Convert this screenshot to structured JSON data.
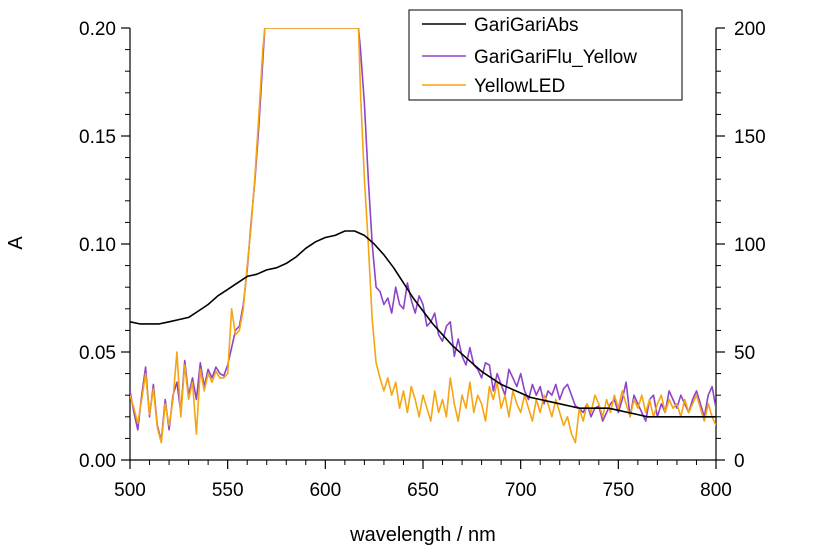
{
  "chart_data": {
    "type": "line",
    "xlabel": "wavelength / nm",
    "ylabel": "A",
    "xlim": [
      500,
      800
    ],
    "ylim_left": [
      0,
      0.2
    ],
    "ylim_right": [
      0,
      200
    ],
    "x_ticks": [
      "500",
      "550",
      "600",
      "650",
      "700",
      "750",
      "800"
    ],
    "y_ticks_left": [
      "0.00",
      "0.05",
      "0.10",
      "0.15",
      "0.20"
    ],
    "y_ticks_right": [
      "0",
      "50",
      "100",
      "150",
      "200"
    ],
    "legend_position": "top-right",
    "series": [
      {
        "name": "GariGariAbs",
        "axis": "left",
        "color": "#000000",
        "points": [
          [
            500,
            0.064
          ],
          [
            505,
            0.063
          ],
          [
            510,
            0.063
          ],
          [
            515,
            0.063
          ],
          [
            520,
            0.064
          ],
          [
            525,
            0.065
          ],
          [
            530,
            0.066
          ],
          [
            535,
            0.069
          ],
          [
            540,
            0.072
          ],
          [
            545,
            0.076
          ],
          [
            550,
            0.079
          ],
          [
            555,
            0.082
          ],
          [
            560,
            0.085
          ],
          [
            565,
            0.086
          ],
          [
            570,
            0.088
          ],
          [
            575,
            0.089
          ],
          [
            580,
            0.091
          ],
          [
            585,
            0.094
          ],
          [
            590,
            0.098
          ],
          [
            595,
            0.101
          ],
          [
            600,
            0.103
          ],
          [
            605,
            0.104
          ],
          [
            610,
            0.106
          ],
          [
            615,
            0.106
          ],
          [
            620,
            0.104
          ],
          [
            625,
            0.1
          ],
          [
            630,
            0.095
          ],
          [
            635,
            0.089
          ],
          [
            640,
            0.082
          ],
          [
            645,
            0.075
          ],
          [
            650,
            0.069
          ],
          [
            655,
            0.063
          ],
          [
            660,
            0.058
          ],
          [
            665,
            0.053
          ],
          [
            670,
            0.049
          ],
          [
            675,
            0.045
          ],
          [
            680,
            0.041
          ],
          [
            685,
            0.038
          ],
          [
            690,
            0.035
          ],
          [
            695,
            0.033
          ],
          [
            700,
            0.031
          ],
          [
            705,
            0.029
          ],
          [
            710,
            0.028
          ],
          [
            715,
            0.027
          ],
          [
            720,
            0.026
          ],
          [
            725,
            0.025
          ],
          [
            730,
            0.024
          ],
          [
            735,
            0.024
          ],
          [
            740,
            0.024
          ],
          [
            745,
            0.024
          ],
          [
            750,
            0.023
          ],
          [
            755,
            0.022
          ],
          [
            760,
            0.021
          ],
          [
            765,
            0.02
          ],
          [
            770,
            0.02
          ],
          [
            775,
            0.02
          ],
          [
            780,
            0.02
          ],
          [
            785,
            0.02
          ],
          [
            790,
            0.02
          ],
          [
            795,
            0.02
          ],
          [
            800,
            0.02
          ]
        ]
      },
      {
        "name": "GariGariFlu_Yellow",
        "axis": "right",
        "color": "#8e44c9",
        "points": [
          [
            500,
            32
          ],
          [
            502,
            22
          ],
          [
            504,
            14
          ],
          [
            506,
            30
          ],
          [
            508,
            43
          ],
          [
            510,
            20
          ],
          [
            512,
            35
          ],
          [
            514,
            16
          ],
          [
            516,
            9
          ],
          [
            518,
            28
          ],
          [
            520,
            14
          ],
          [
            522,
            30
          ],
          [
            524,
            36
          ],
          [
            526,
            22
          ],
          [
            528,
            46
          ],
          [
            530,
            30
          ],
          [
            532,
            38
          ],
          [
            534,
            28
          ],
          [
            536,
            45
          ],
          [
            538,
            34
          ],
          [
            540,
            42
          ],
          [
            542,
            38
          ],
          [
            544,
            43
          ],
          [
            546,
            40
          ],
          [
            548,
            39
          ],
          [
            550,
            44
          ],
          [
            552,
            52
          ],
          [
            554,
            60
          ],
          [
            556,
            62
          ],
          [
            558,
            72
          ],
          [
            560,
            88
          ],
          [
            562,
            110
          ],
          [
            564,
            130
          ],
          [
            566,
            155
          ],
          [
            568,
            185
          ],
          [
            569,
            200
          ],
          [
            617,
            200
          ],
          [
            618,
            190
          ],
          [
            620,
            165
          ],
          [
            622,
            130
          ],
          [
            624,
            100
          ],
          [
            626,
            80
          ],
          [
            628,
            78
          ],
          [
            630,
            72
          ],
          [
            632,
            75
          ],
          [
            634,
            68
          ],
          [
            636,
            80
          ],
          [
            638,
            72
          ],
          [
            640,
            70
          ],
          [
            642,
            82
          ],
          [
            644,
            74
          ],
          [
            646,
            68
          ],
          [
            648,
            76
          ],
          [
            650,
            72
          ],
          [
            652,
            62
          ],
          [
            654,
            64
          ],
          [
            656,
            68
          ],
          [
            658,
            58
          ],
          [
            660,
            55
          ],
          [
            662,
            62
          ],
          [
            664,
            64
          ],
          [
            666,
            48
          ],
          [
            668,
            56
          ],
          [
            670,
            48
          ],
          [
            672,
            44
          ],
          [
            674,
            52
          ],
          [
            676,
            44
          ],
          [
            678,
            42
          ],
          [
            680,
            38
          ],
          [
            682,
            45
          ],
          [
            684,
            44
          ],
          [
            686,
            32
          ],
          [
            688,
            40
          ],
          [
            690,
            35
          ],
          [
            692,
            30
          ],
          [
            694,
            42
          ],
          [
            696,
            38
          ],
          [
            698,
            34
          ],
          [
            700,
            40
          ],
          [
            702,
            32
          ],
          [
            704,
            28
          ],
          [
            706,
            35
          ],
          [
            708,
            30
          ],
          [
            710,
            34
          ],
          [
            712,
            26
          ],
          [
            714,
            32
          ],
          [
            716,
            30
          ],
          [
            718,
            35
          ],
          [
            720,
            28
          ],
          [
            722,
            33
          ],
          [
            724,
            35
          ],
          [
            726,
            30
          ],
          [
            728,
            25
          ],
          [
            730,
            24
          ],
          [
            732,
            22
          ],
          [
            734,
            26
          ],
          [
            736,
            20
          ],
          [
            738,
            24
          ],
          [
            740,
            25
          ],
          [
            742,
            18
          ],
          [
            744,
            22
          ],
          [
            746,
            26
          ],
          [
            748,
            28
          ],
          [
            750,
            22
          ],
          [
            752,
            28
          ],
          [
            754,
            36
          ],
          [
            756,
            20
          ],
          [
            758,
            30
          ],
          [
            760,
            26
          ],
          [
            762,
            22
          ],
          [
            764,
            18
          ],
          [
            766,
            28
          ],
          [
            768,
            30
          ],
          [
            770,
            20
          ],
          [
            772,
            26
          ],
          [
            774,
            22
          ],
          [
            776,
            32
          ],
          [
            778,
            28
          ],
          [
            780,
            24
          ],
          [
            782,
            30
          ],
          [
            784,
            26
          ],
          [
            786,
            22
          ],
          [
            788,
            28
          ],
          [
            790,
            32
          ],
          [
            792,
            26
          ],
          [
            794,
            20
          ],
          [
            796,
            30
          ],
          [
            798,
            34
          ],
          [
            800,
            24
          ]
        ]
      },
      {
        "name": "YellowLED",
        "axis": "right",
        "color": "#f5a511",
        "points": [
          [
            500,
            30
          ],
          [
            502,
            24
          ],
          [
            504,
            17
          ],
          [
            506,
            28
          ],
          [
            508,
            40
          ],
          [
            510,
            21
          ],
          [
            512,
            33
          ],
          [
            514,
            15
          ],
          [
            516,
            8
          ],
          [
            518,
            26
          ],
          [
            520,
            16
          ],
          [
            522,
            28
          ],
          [
            524,
            50
          ],
          [
            526,
            20
          ],
          [
            528,
            44
          ],
          [
            530,
            28
          ],
          [
            532,
            36
          ],
          [
            534,
            12
          ],
          [
            536,
            42
          ],
          [
            538,
            32
          ],
          [
            540,
            40
          ],
          [
            542,
            36
          ],
          [
            544,
            41
          ],
          [
            546,
            38
          ],
          [
            548,
            38
          ],
          [
            550,
            40
          ],
          [
            552,
            70
          ],
          [
            554,
            58
          ],
          [
            556,
            60
          ],
          [
            558,
            70
          ],
          [
            560,
            90
          ],
          [
            562,
            108
          ],
          [
            564,
            132
          ],
          [
            566,
            160
          ],
          [
            568,
            190
          ],
          [
            569,
            200
          ],
          [
            617,
            200
          ],
          [
            618,
            170
          ],
          [
            620,
            130
          ],
          [
            622,
            100
          ],
          [
            624,
            65
          ],
          [
            626,
            45
          ],
          [
            628,
            38
          ],
          [
            630,
            32
          ],
          [
            632,
            38
          ],
          [
            634,
            30
          ],
          [
            636,
            36
          ],
          [
            638,
            24
          ],
          [
            640,
            32
          ],
          [
            642,
            22
          ],
          [
            644,
            34
          ],
          [
            646,
            28
          ],
          [
            648,
            20
          ],
          [
            650,
            30
          ],
          [
            652,
            24
          ],
          [
            654,
            18
          ],
          [
            656,
            32
          ],
          [
            658,
            22
          ],
          [
            660,
            28
          ],
          [
            662,
            20
          ],
          [
            664,
            38
          ],
          [
            666,
            26
          ],
          [
            668,
            18
          ],
          [
            670,
            30
          ],
          [
            672,
            24
          ],
          [
            674,
            36
          ],
          [
            676,
            22
          ],
          [
            678,
            30
          ],
          [
            680,
            26
          ],
          [
            682,
            18
          ],
          [
            684,
            34
          ],
          [
            686,
            28
          ],
          [
            688,
            36
          ],
          [
            690,
            24
          ],
          [
            692,
            30
          ],
          [
            694,
            20
          ],
          [
            696,
            32
          ],
          [
            698,
            26
          ],
          [
            700,
            22
          ],
          [
            702,
            30
          ],
          [
            704,
            24
          ],
          [
            706,
            18
          ],
          [
            708,
            28
          ],
          [
            710,
            22
          ],
          [
            712,
            30
          ],
          [
            714,
            26
          ],
          [
            716,
            20
          ],
          [
            718,
            28
          ],
          [
            720,
            22
          ],
          [
            722,
            16
          ],
          [
            724,
            20
          ],
          [
            726,
            12
          ],
          [
            728,
            8
          ],
          [
            730,
            24
          ],
          [
            732,
            18
          ],
          [
            734,
            26
          ],
          [
            736,
            22
          ],
          [
            738,
            30
          ],
          [
            740,
            26
          ],
          [
            742,
            20
          ],
          [
            744,
            28
          ],
          [
            746,
            22
          ],
          [
            748,
            30
          ],
          [
            750,
            24
          ],
          [
            752,
            32
          ],
          [
            754,
            26
          ],
          [
            756,
            20
          ],
          [
            758,
            28
          ],
          [
            760,
            24
          ],
          [
            762,
            30
          ],
          [
            764,
            22
          ],
          [
            766,
            28
          ],
          [
            768,
            20
          ],
          [
            770,
            26
          ],
          [
            772,
            30
          ],
          [
            774,
            22
          ],
          [
            776,
            28
          ],
          [
            778,
            24
          ],
          [
            780,
            26
          ],
          [
            782,
            20
          ],
          [
            784,
            28
          ],
          [
            786,
            22
          ],
          [
            788,
            26
          ],
          [
            790,
            30
          ],
          [
            792,
            24
          ],
          [
            794,
            18
          ],
          [
            796,
            26
          ],
          [
            798,
            20
          ],
          [
            800,
            16
          ]
        ]
      }
    ]
  }
}
